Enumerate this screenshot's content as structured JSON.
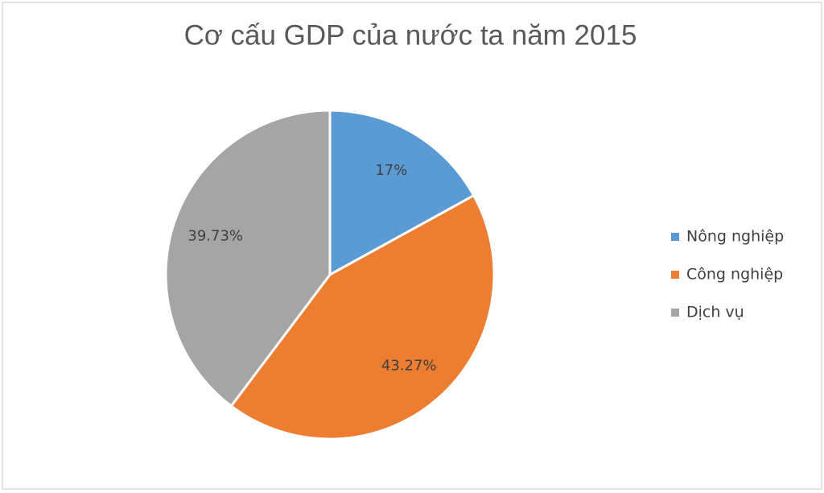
{
  "chart_data": {
    "type": "pie",
    "title": "Cơ cấu GDP của nước ta năm 2015",
    "categories": [
      "Nông nghiệp",
      "Công nghiệp",
      "Dịch vụ"
    ],
    "values": [
      17,
      43.27,
      39.73
    ],
    "value_labels": [
      "17%",
      "43.27%",
      "39.73%"
    ],
    "colors": [
      "#5b9bd5",
      "#ed7d31",
      "#a5a5a5"
    ],
    "legend": "right"
  }
}
